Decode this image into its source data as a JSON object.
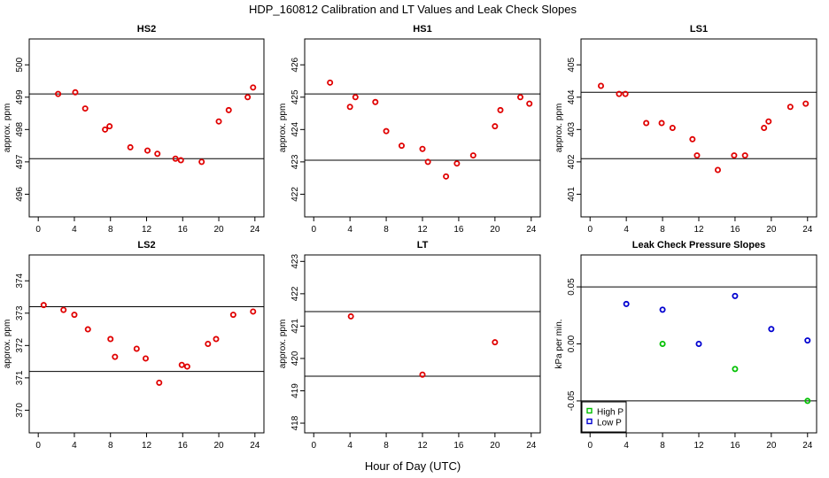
{
  "chart_data": {
    "title": "HDP_160812  Calibration and LT Values and Leak Check Slopes",
    "xlabel": "Hour of Day (UTC)",
    "xlim": [
      -1,
      25
    ],
    "xticks": [
      0,
      4,
      8,
      12,
      16,
      20,
      24
    ],
    "colors": {
      "point": "#e00000",
      "high_p": "#00c000",
      "low_p": "#0000d0",
      "line": "#000000"
    },
    "panels": [
      {
        "title": "HS2",
        "type": "scatter",
        "ylabel": "approx. ppm",
        "ylim": [
          495.3,
          500.8
        ],
        "yticks": [
          496,
          497,
          498,
          499,
          500
        ],
        "hlines": [
          497.1,
          499.1
        ],
        "points": [
          [
            2.2,
            499.1
          ],
          [
            4.1,
            499.15
          ],
          [
            5.2,
            498.65
          ],
          [
            7.4,
            498.0
          ],
          [
            7.9,
            498.1
          ],
          [
            10.2,
            497.45
          ],
          [
            12.1,
            497.35
          ],
          [
            13.2,
            497.25
          ],
          [
            15.2,
            497.1
          ],
          [
            15.8,
            497.05
          ],
          [
            18.1,
            497.0
          ],
          [
            20.0,
            498.25
          ],
          [
            21.1,
            498.6
          ],
          [
            23.2,
            499.0
          ],
          [
            23.8,
            499.3
          ]
        ]
      },
      {
        "title": "HS1",
        "type": "scatter",
        "ylabel": "approx. ppm",
        "ylim": [
          421.3,
          426.8
        ],
        "yticks": [
          422,
          423,
          424,
          425,
          426
        ],
        "hlines": [
          423.05,
          425.1
        ],
        "points": [
          [
            1.8,
            425.45
          ],
          [
            4.0,
            424.7
          ],
          [
            4.6,
            425.0
          ],
          [
            6.8,
            424.85
          ],
          [
            8.0,
            423.95
          ],
          [
            9.7,
            423.5
          ],
          [
            12.0,
            423.4
          ],
          [
            12.6,
            423.0
          ],
          [
            14.6,
            422.55
          ],
          [
            15.8,
            422.95
          ],
          [
            17.6,
            423.2
          ],
          [
            20.0,
            424.1
          ],
          [
            20.6,
            424.6
          ],
          [
            22.8,
            425.0
          ],
          [
            23.8,
            424.8
          ]
        ]
      },
      {
        "title": "LS1",
        "type": "scatter",
        "ylabel": "approx. ppm",
        "ylim": [
          400.3,
          405.8
        ],
        "yticks": [
          401,
          402,
          403,
          404,
          405
        ],
        "hlines": [
          402.1,
          404.15
        ],
        "points": [
          [
            1.2,
            404.35
          ],
          [
            3.2,
            404.1
          ],
          [
            3.9,
            404.1
          ],
          [
            6.2,
            403.2
          ],
          [
            7.9,
            403.2
          ],
          [
            9.1,
            403.05
          ],
          [
            11.3,
            402.7
          ],
          [
            11.8,
            402.2
          ],
          [
            14.1,
            401.75
          ],
          [
            15.9,
            402.2
          ],
          [
            17.1,
            402.2
          ],
          [
            19.2,
            403.05
          ],
          [
            19.7,
            403.25
          ],
          [
            22.1,
            403.7
          ],
          [
            23.8,
            403.8
          ]
        ]
      },
      {
        "title": "LS2",
        "type": "scatter",
        "ylabel": "approx. ppm",
        "ylim": [
          369.3,
          374.8
        ],
        "yticks": [
          370,
          371,
          372,
          373,
          374
        ],
        "hlines": [
          371.2,
          373.2
        ],
        "points": [
          [
            0.6,
            373.25
          ],
          [
            2.8,
            373.1
          ],
          [
            4.0,
            372.95
          ],
          [
            5.5,
            372.5
          ],
          [
            8.0,
            372.2
          ],
          [
            8.5,
            371.65
          ],
          [
            10.9,
            371.9
          ],
          [
            11.9,
            371.6
          ],
          [
            13.4,
            370.85
          ],
          [
            15.9,
            371.4
          ],
          [
            16.5,
            371.35
          ],
          [
            18.8,
            372.05
          ],
          [
            19.7,
            372.2
          ],
          [
            21.6,
            372.95
          ],
          [
            23.8,
            373.05
          ]
        ]
      },
      {
        "title": "LT",
        "type": "scatter",
        "ylabel": "approx. ppm",
        "ylim": [
          417.7,
          423.2
        ],
        "yticks": [
          418,
          419,
          420,
          421,
          422,
          423
        ],
        "hlines": [
          419.45,
          421.45
        ],
        "points": [
          [
            4.1,
            421.3
          ],
          [
            12.0,
            419.5
          ],
          [
            20.0,
            420.5
          ]
        ]
      },
      {
        "title": "Leak Check Pressure Slopes",
        "type": "scatter",
        "ylabel": "kPa per min.",
        "ylim": [
          -0.078,
          0.078
        ],
        "yticks": [
          -0.05,
          0.0,
          0.05
        ],
        "yticklabels": [
          "-0.05",
          "0.00",
          "0.05"
        ],
        "hlines": [
          -0.05,
          0.05
        ],
        "series": [
          {
            "name": "High P",
            "color": "#00c000",
            "points": [
              [
                8,
                0.0
              ],
              [
                16,
                -0.022
              ],
              [
                24,
                -0.05
              ]
            ]
          },
          {
            "name": "Low P",
            "color": "#0000d0",
            "points": [
              [
                4,
                0.035
              ],
              [
                8,
                0.03
              ],
              [
                12,
                0.0
              ],
              [
                16,
                0.042
              ],
              [
                20,
                0.013
              ],
              [
                24,
                0.003
              ]
            ]
          }
        ],
        "legend": [
          "High P",
          "Low P"
        ],
        "legend_position": "bottom-left"
      }
    ]
  }
}
